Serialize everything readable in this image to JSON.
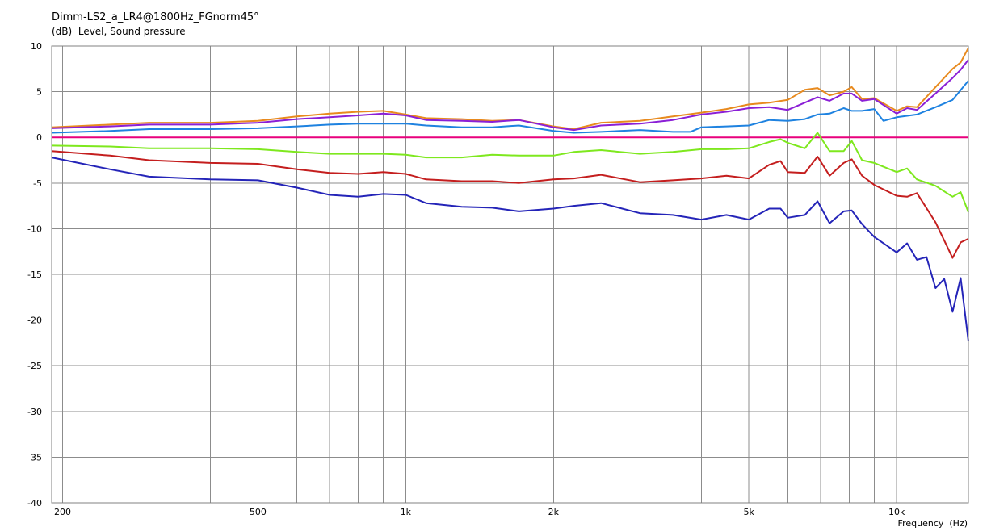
{
  "chart_data": {
    "type": "line",
    "title": "Dimm-LS2_a_LR4@1800Hz_FGnorm45°",
    "ylabel": "(dB)  Level, Sound pressure",
    "xlabel": "Frequency  (Hz)",
    "xscale": "log",
    "xlim": [
      190,
      14000
    ],
    "ylim": [
      -40,
      10
    ],
    "grid": true,
    "legend": "none",
    "x_tick_labels": [
      {
        "value": 200,
        "label": "200"
      },
      {
        "value": 500,
        "label": "500"
      },
      {
        "value": 1000,
        "label": "1k"
      },
      {
        "value": 2000,
        "label": "2k"
      },
      {
        "value": 5000,
        "label": "5k"
      },
      {
        "value": 10000,
        "label": "10k"
      }
    ],
    "y_ticks": [
      10,
      5,
      0,
      -5,
      -10,
      -15,
      -20,
      -25,
      -30,
      -35,
      -40
    ],
    "x_grid_values": [
      200,
      300,
      400,
      500,
      600,
      700,
      800,
      900,
      1000,
      2000,
      3000,
      4000,
      5000,
      6000,
      7000,
      8000,
      9000,
      10000
    ],
    "series": [
      {
        "color": "#e88a1e",
        "points": [
          [
            190,
            1.1
          ],
          [
            250,
            1.4
          ],
          [
            300,
            1.6
          ],
          [
            400,
            1.6
          ],
          [
            500,
            1.8
          ],
          [
            600,
            2.3
          ],
          [
            700,
            2.6
          ],
          [
            800,
            2.8
          ],
          [
            900,
            2.9
          ],
          [
            1000,
            2.5
          ],
          [
            1100,
            2.1
          ],
          [
            1300,
            2.0
          ],
          [
            1500,
            1.8
          ],
          [
            1700,
            1.9
          ],
          [
            2000,
            1.2
          ],
          [
            2200,
            0.9
          ],
          [
            2500,
            1.6
          ],
          [
            3000,
            1.8
          ],
          [
            3500,
            2.3
          ],
          [
            4000,
            2.7
          ],
          [
            4500,
            3.1
          ],
          [
            5000,
            3.6
          ],
          [
            5500,
            3.8
          ],
          [
            6000,
            4.1
          ],
          [
            6500,
            5.2
          ],
          [
            6900,
            5.4
          ],
          [
            7300,
            4.6
          ],
          [
            7800,
            5.0
          ],
          [
            8100,
            5.5
          ],
          [
            8500,
            4.2
          ],
          [
            9000,
            4.3
          ],
          [
            10000,
            2.9
          ],
          [
            10500,
            3.4
          ],
          [
            11000,
            3.3
          ],
          [
            12000,
            5.5
          ],
          [
            13000,
            7.5
          ],
          [
            13500,
            8.2
          ],
          [
            14000,
            9.8
          ]
        ]
      },
      {
        "color": "#8b1fd6",
        "points": [
          [
            190,
            1.0
          ],
          [
            250,
            1.2
          ],
          [
            300,
            1.4
          ],
          [
            400,
            1.4
          ],
          [
            500,
            1.6
          ],
          [
            600,
            2.0
          ],
          [
            700,
            2.2
          ],
          [
            800,
            2.4
          ],
          [
            900,
            2.6
          ],
          [
            1000,
            2.4
          ],
          [
            1100,
            1.9
          ],
          [
            1300,
            1.8
          ],
          [
            1500,
            1.7
          ],
          [
            1700,
            1.9
          ],
          [
            2000,
            1.1
          ],
          [
            2200,
            0.8
          ],
          [
            2500,
            1.3
          ],
          [
            3000,
            1.5
          ],
          [
            3500,
            1.9
          ],
          [
            4000,
            2.5
          ],
          [
            4500,
            2.8
          ],
          [
            5000,
            3.2
          ],
          [
            5500,
            3.3
          ],
          [
            6000,
            3.0
          ],
          [
            6500,
            3.8
          ],
          [
            6900,
            4.4
          ],
          [
            7300,
            4.0
          ],
          [
            7800,
            4.8
          ],
          [
            8100,
            4.8
          ],
          [
            8500,
            4.0
          ],
          [
            9000,
            4.2
          ],
          [
            10000,
            2.6
          ],
          [
            10500,
            3.2
          ],
          [
            11000,
            3.0
          ],
          [
            12000,
            4.8
          ],
          [
            13000,
            6.5
          ],
          [
            13500,
            7.4
          ],
          [
            14000,
            8.5
          ]
        ]
      },
      {
        "color": "#1e82e0",
        "points": [
          [
            190,
            0.5
          ],
          [
            250,
            0.7
          ],
          [
            300,
            0.9
          ],
          [
            400,
            0.9
          ],
          [
            500,
            1.0
          ],
          [
            600,
            1.2
          ],
          [
            700,
            1.4
          ],
          [
            800,
            1.5
          ],
          [
            900,
            1.5
          ],
          [
            1000,
            1.5
          ],
          [
            1100,
            1.3
          ],
          [
            1300,
            1.1
          ],
          [
            1500,
            1.1
          ],
          [
            1700,
            1.3
          ],
          [
            2000,
            0.7
          ],
          [
            2200,
            0.5
          ],
          [
            2500,
            0.6
          ],
          [
            3000,
            0.8
          ],
          [
            3500,
            0.6
          ],
          [
            3800,
            0.6
          ],
          [
            4000,
            1.1
          ],
          [
            4500,
            1.2
          ],
          [
            5000,
            1.3
          ],
          [
            5500,
            1.9
          ],
          [
            6000,
            1.8
          ],
          [
            6500,
            2.0
          ],
          [
            6900,
            2.5
          ],
          [
            7300,
            2.6
          ],
          [
            7800,
            3.2
          ],
          [
            8100,
            2.9
          ],
          [
            8500,
            2.9
          ],
          [
            9000,
            3.1
          ],
          [
            9400,
            1.8
          ],
          [
            10000,
            2.2
          ],
          [
            11000,
            2.5
          ],
          [
            12000,
            3.3
          ],
          [
            13000,
            4.1
          ],
          [
            14000,
            6.2
          ]
        ]
      },
      {
        "color": "#e8007d",
        "points": [
          [
            190,
            0.0
          ],
          [
            14000,
            0.0
          ]
        ]
      },
      {
        "color": "#7ee81e",
        "points": [
          [
            190,
            -0.9
          ],
          [
            250,
            -1.0
          ],
          [
            300,
            -1.2
          ],
          [
            400,
            -1.2
          ],
          [
            500,
            -1.3
          ],
          [
            600,
            -1.6
          ],
          [
            700,
            -1.8
          ],
          [
            800,
            -1.8
          ],
          [
            900,
            -1.8
          ],
          [
            1000,
            -1.9
          ],
          [
            1100,
            -2.2
          ],
          [
            1300,
            -2.2
          ],
          [
            1500,
            -1.9
          ],
          [
            1700,
            -2.0
          ],
          [
            2000,
            -2.0
          ],
          [
            2200,
            -1.6
          ],
          [
            2500,
            -1.4
          ],
          [
            3000,
            -1.8
          ],
          [
            3500,
            -1.6
          ],
          [
            4000,
            -1.3
          ],
          [
            4500,
            -1.3
          ],
          [
            5000,
            -1.2
          ],
          [
            5500,
            -0.5
          ],
          [
            5800,
            -0.2
          ],
          [
            6000,
            -0.6
          ],
          [
            6500,
            -1.2
          ],
          [
            6900,
            0.5
          ],
          [
            7300,
            -1.5
          ],
          [
            7800,
            -1.5
          ],
          [
            8100,
            -0.4
          ],
          [
            8500,
            -2.5
          ],
          [
            9000,
            -2.8
          ],
          [
            10000,
            -3.8
          ],
          [
            10500,
            -3.4
          ],
          [
            11000,
            -4.6
          ],
          [
            12000,
            -5.3
          ],
          [
            13000,
            -6.5
          ],
          [
            13500,
            -6.0
          ],
          [
            14000,
            -8.2
          ]
        ]
      },
      {
        "color": "#c41e1e",
        "points": [
          [
            190,
            -1.5
          ],
          [
            250,
            -2.0
          ],
          [
            300,
            -2.5
          ],
          [
            400,
            -2.8
          ],
          [
            500,
            -2.9
          ],
          [
            600,
            -3.5
          ],
          [
            700,
            -3.9
          ],
          [
            800,
            -4.0
          ],
          [
            900,
            -3.8
          ],
          [
            1000,
            -4.0
          ],
          [
            1100,
            -4.6
          ],
          [
            1300,
            -4.8
          ],
          [
            1500,
            -4.8
          ],
          [
            1700,
            -5.0
          ],
          [
            2000,
            -4.6
          ],
          [
            2200,
            -4.5
          ],
          [
            2500,
            -4.1
          ],
          [
            3000,
            -4.9
          ],
          [
            3500,
            -4.7
          ],
          [
            4000,
            -4.5
          ],
          [
            4500,
            -4.2
          ],
          [
            5000,
            -4.5
          ],
          [
            5500,
            -3.0
          ],
          [
            5800,
            -2.6
          ],
          [
            6000,
            -3.8
          ],
          [
            6500,
            -3.9
          ],
          [
            6900,
            -2.1
          ],
          [
            7300,
            -4.2
          ],
          [
            7800,
            -2.8
          ],
          [
            8100,
            -2.4
          ],
          [
            8500,
            -4.2
          ],
          [
            9000,
            -5.2
          ],
          [
            10000,
            -6.4
          ],
          [
            10500,
            -6.5
          ],
          [
            11000,
            -6.1
          ],
          [
            12000,
            -9.3
          ],
          [
            13000,
            -13.2
          ],
          [
            13500,
            -11.5
          ],
          [
            14000,
            -11.1
          ]
        ]
      },
      {
        "color": "#2424b8",
        "points": [
          [
            190,
            -2.2
          ],
          [
            250,
            -3.5
          ],
          [
            300,
            -4.3
          ],
          [
            400,
            -4.6
          ],
          [
            500,
            -4.7
          ],
          [
            600,
            -5.5
          ],
          [
            700,
            -6.3
          ],
          [
            800,
            -6.5
          ],
          [
            900,
            -6.2
          ],
          [
            1000,
            -6.3
          ],
          [
            1100,
            -7.2
          ],
          [
            1300,
            -7.6
          ],
          [
            1500,
            -7.7
          ],
          [
            1700,
            -8.1
          ],
          [
            2000,
            -7.8
          ],
          [
            2200,
            -7.5
          ],
          [
            2500,
            -7.2
          ],
          [
            3000,
            -8.3
          ],
          [
            3500,
            -8.5
          ],
          [
            4000,
            -9.0
          ],
          [
            4500,
            -8.5
          ],
          [
            5000,
            -9.0
          ],
          [
            5500,
            -7.8
          ],
          [
            5800,
            -7.8
          ],
          [
            6000,
            -8.8
          ],
          [
            6500,
            -8.5
          ],
          [
            6900,
            -7.0
          ],
          [
            7300,
            -9.4
          ],
          [
            7800,
            -8.1
          ],
          [
            8100,
            -8.0
          ],
          [
            8500,
            -9.5
          ],
          [
            9000,
            -10.9
          ],
          [
            10000,
            -12.6
          ],
          [
            10500,
            -11.6
          ],
          [
            11000,
            -13.4
          ],
          [
            11500,
            -13.1
          ],
          [
            12000,
            -16.5
          ],
          [
            12500,
            -15.5
          ],
          [
            13000,
            -19.1
          ],
          [
            13500,
            -15.4
          ],
          [
            14000,
            -22.3
          ]
        ]
      }
    ]
  }
}
